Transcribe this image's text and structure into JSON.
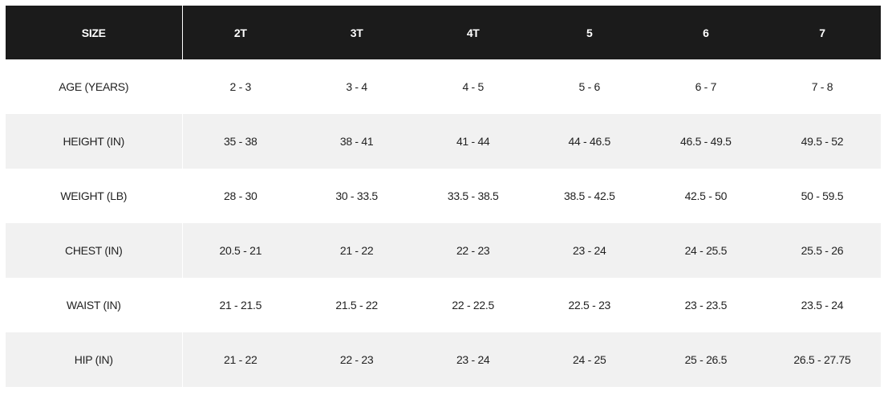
{
  "table": {
    "header": [
      "SIZE",
      "2T",
      "3T",
      "4T",
      "5",
      "6",
      "7"
    ],
    "rows": [
      [
        "AGE (YEARS)",
        "2 - 3",
        "3 - 4",
        "4 - 5",
        "5 - 6",
        "6 - 7",
        "7 - 8"
      ],
      [
        "HEIGHT (IN)",
        "35 - 38",
        "38 - 41",
        "41 - 44",
        "44 - 46.5",
        "46.5 - 49.5",
        "49.5 - 52"
      ],
      [
        "WEIGHT (LB)",
        "28 - 30",
        "30 - 33.5",
        "33.5 - 38.5",
        "38.5 - 42.5",
        "42.5 - 50",
        "50 - 59.5"
      ],
      [
        "CHEST (IN)",
        "20.5 - 21",
        "21 - 22",
        "22 - 23",
        "23 - 24",
        "24 - 25.5",
        "25.5 - 26"
      ],
      [
        "WAIST (IN)",
        "21 - 21.5",
        "21.5 - 22",
        "22 - 22.5",
        "22.5 - 23",
        "23 - 23.5",
        "23.5 - 24"
      ],
      [
        "HIP (IN)",
        "21 - 22",
        "22 - 23",
        "23 - 24",
        "24 - 25",
        "25 - 26.5",
        "26.5 - 27.75"
      ]
    ]
  }
}
